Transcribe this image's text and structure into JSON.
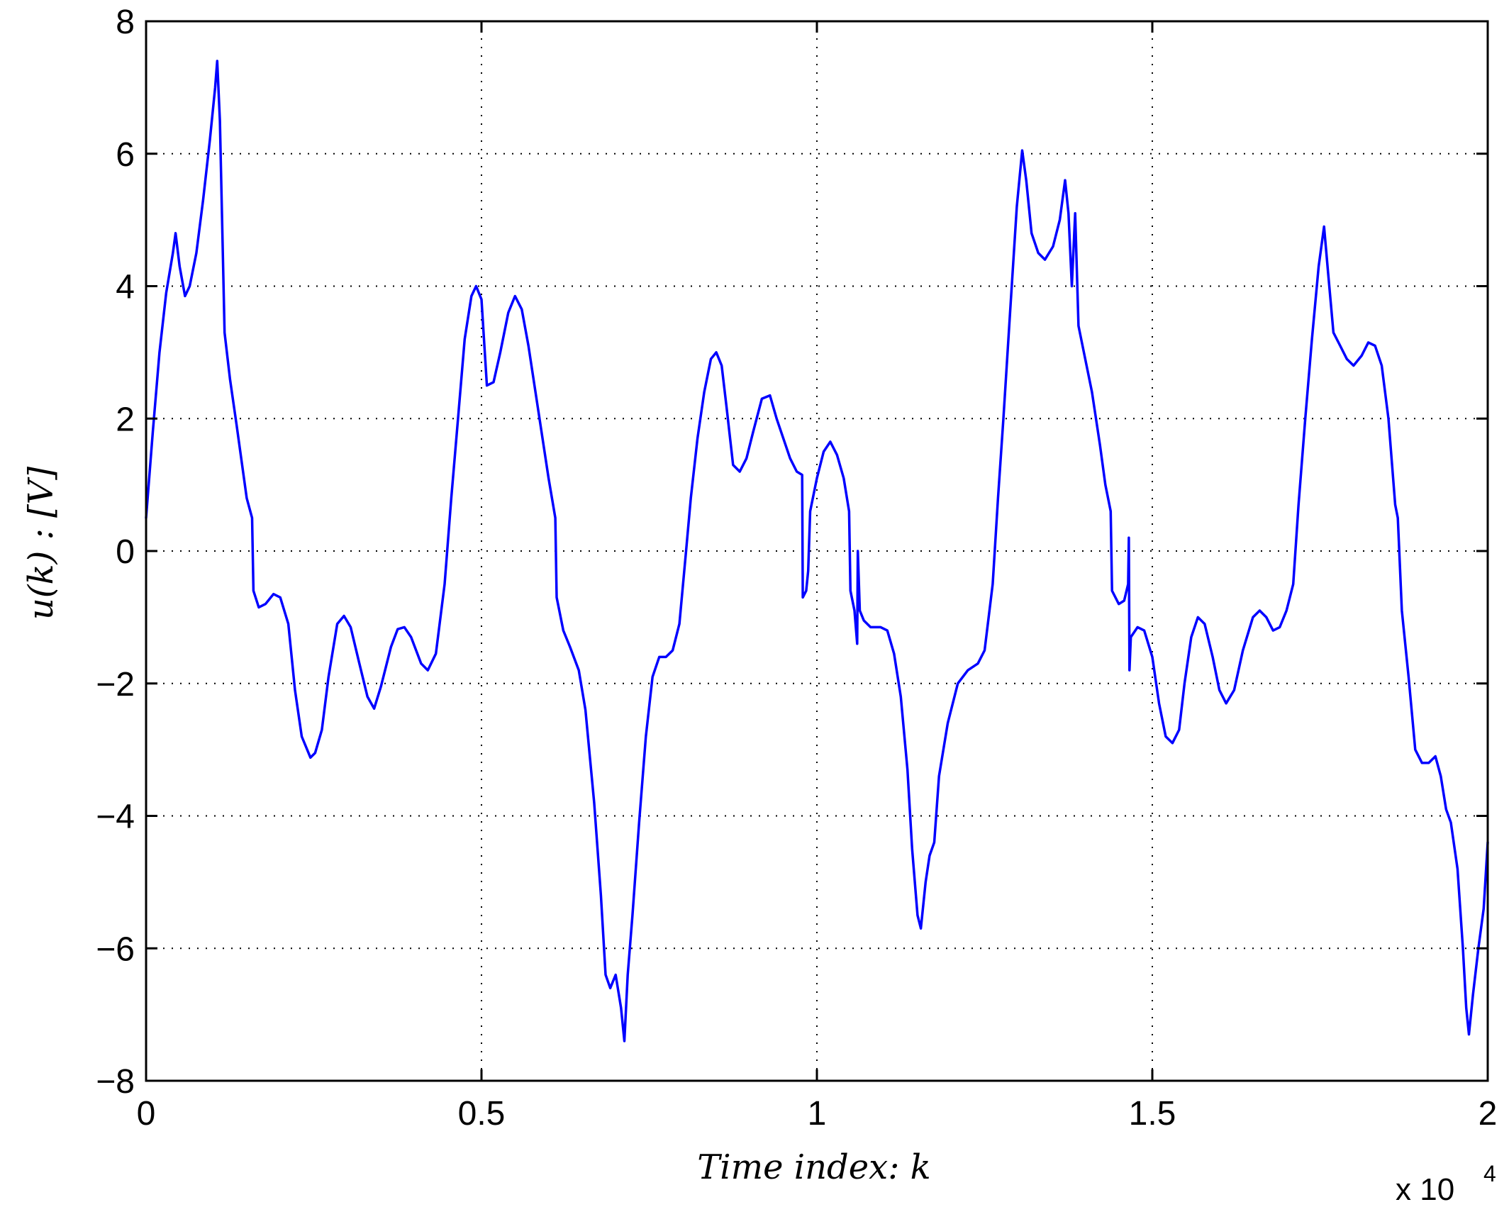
{
  "chart_data": {
    "type": "line",
    "title": "",
    "xlabel": "Time index:  k",
    "ylabel": "u(k) : [V]",
    "x_exponent_label": "x 10",
    "x_exponent_power": "4",
    "xlim": [
      0,
      2
    ],
    "ylim": [
      -8,
      8
    ],
    "xticks": [
      0,
      0.5,
      1,
      1.5,
      2
    ],
    "xtick_labels": [
      "0",
      "0.5",
      "1",
      "1.5",
      "2"
    ],
    "yticks": [
      -8,
      -6,
      -4,
      -2,
      0,
      2,
      4,
      6,
      8
    ],
    "ytick_labels": [
      "−8",
      "−6",
      "−4",
      "−2",
      "0",
      "2",
      "4",
      "6",
      "8"
    ],
    "grid": true,
    "colors": {
      "series": "#0000ff",
      "axes": "#000000",
      "background": "#ffffff"
    },
    "series": [
      {
        "points": [
          [
            0.0,
            0.5
          ],
          [
            0.01,
            1.8
          ],
          [
            0.02,
            3.0
          ],
          [
            0.03,
            3.9
          ],
          [
            0.04,
            4.5
          ],
          [
            0.044,
            4.8
          ],
          [
            0.05,
            4.3
          ],
          [
            0.058,
            3.85
          ],
          [
            0.065,
            4.0
          ],
          [
            0.075,
            4.5
          ],
          [
            0.085,
            5.3
          ],
          [
            0.095,
            6.2
          ],
          [
            0.103,
            7.0
          ],
          [
            0.106,
            7.4
          ],
          [
            0.11,
            6.5
          ],
          [
            0.117,
            3.3
          ],
          [
            0.125,
            2.6
          ],
          [
            0.135,
            1.9
          ],
          [
            0.15,
            0.8
          ],
          [
            0.158,
            0.5
          ],
          [
            0.16,
            -0.6
          ],
          [
            0.168,
            -0.85
          ],
          [
            0.178,
            -0.8
          ],
          [
            0.19,
            -0.65
          ],
          [
            0.2,
            -0.7
          ],
          [
            0.212,
            -1.1
          ],
          [
            0.222,
            -2.1
          ],
          [
            0.232,
            -2.8
          ],
          [
            0.245,
            -3.12
          ],
          [
            0.252,
            -3.05
          ],
          [
            0.262,
            -2.7
          ],
          [
            0.272,
            -1.9
          ],
          [
            0.285,
            -1.1
          ],
          [
            0.295,
            -0.98
          ],
          [
            0.305,
            -1.15
          ],
          [
            0.318,
            -1.7
          ],
          [
            0.33,
            -2.2
          ],
          [
            0.34,
            -2.38
          ],
          [
            0.35,
            -2.05
          ],
          [
            0.365,
            -1.45
          ],
          [
            0.375,
            -1.18
          ],
          [
            0.385,
            -1.15
          ],
          [
            0.395,
            -1.3
          ],
          [
            0.41,
            -1.7
          ],
          [
            0.42,
            -1.8
          ],
          [
            0.432,
            -1.55
          ],
          [
            0.445,
            -0.5
          ],
          [
            0.455,
            0.8
          ],
          [
            0.465,
            2.0
          ],
          [
            0.475,
            3.2
          ],
          [
            0.485,
            3.85
          ],
          [
            0.492,
            4.0
          ],
          [
            0.5,
            3.8
          ],
          [
            0.508,
            2.5
          ],
          [
            0.518,
            2.55
          ],
          [
            0.528,
            3.0
          ],
          [
            0.54,
            3.6
          ],
          [
            0.55,
            3.85
          ],
          [
            0.56,
            3.65
          ],
          [
            0.57,
            3.1
          ],
          [
            0.585,
            2.1
          ],
          [
            0.6,
            1.1
          ],
          [
            0.61,
            0.5
          ],
          [
            0.612,
            -0.7
          ],
          [
            0.622,
            -1.2
          ],
          [
            0.632,
            -1.45
          ],
          [
            0.645,
            -1.8
          ],
          [
            0.655,
            -2.4
          ],
          [
            0.668,
            -3.8
          ],
          [
            0.678,
            -5.2
          ],
          [
            0.685,
            -6.4
          ],
          [
            0.692,
            -6.6
          ],
          [
            0.7,
            -6.4
          ],
          [
            0.708,
            -6.9
          ],
          [
            0.713,
            -7.4
          ],
          [
            0.718,
            -6.4
          ],
          [
            0.725,
            -5.5
          ],
          [
            0.735,
            -4.1
          ],
          [
            0.745,
            -2.8
          ],
          [
            0.755,
            -1.9
          ],
          [
            0.765,
            -1.6
          ],
          [
            0.775,
            -1.6
          ],
          [
            0.785,
            -1.5
          ],
          [
            0.795,
            -1.1
          ],
          [
            0.805,
            0.0
          ],
          [
            0.812,
            0.8
          ],
          [
            0.822,
            1.7
          ],
          [
            0.832,
            2.4
          ],
          [
            0.842,
            2.9
          ],
          [
            0.85,
            3.0
          ],
          [
            0.858,
            2.8
          ],
          [
            0.865,
            2.2
          ],
          [
            0.875,
            1.3
          ],
          [
            0.885,
            1.2
          ],
          [
            0.895,
            1.4
          ],
          [
            0.905,
            1.8
          ],
          [
            0.918,
            2.3
          ],
          [
            0.93,
            2.35
          ],
          [
            0.94,
            2.0
          ],
          [
            0.95,
            1.7
          ],
          [
            0.96,
            1.4
          ],
          [
            0.97,
            1.2
          ],
          [
            0.978,
            1.15
          ],
          [
            0.979,
            -0.7
          ],
          [
            0.984,
            -0.6
          ],
          [
            0.987,
            -0.3
          ],
          [
            0.99,
            0.6
          ],
          [
            1.0,
            1.1
          ],
          [
            1.01,
            1.5
          ],
          [
            1.02,
            1.65
          ],
          [
            1.03,
            1.45
          ],
          [
            1.04,
            1.1
          ],
          [
            1.048,
            0.6
          ],
          [
            1.05,
            -0.6
          ],
          [
            1.056,
            -0.9
          ],
          [
            1.06,
            -1.4
          ],
          [
            1.061,
            0.0
          ],
          [
            1.064,
            -0.9
          ],
          [
            1.07,
            -1.05
          ],
          [
            1.08,
            -1.15
          ],
          [
            1.095,
            -1.15
          ],
          [
            1.105,
            -1.2
          ],
          [
            1.115,
            -1.55
          ],
          [
            1.125,
            -2.2
          ],
          [
            1.135,
            -3.3
          ],
          [
            1.142,
            -4.5
          ],
          [
            1.15,
            -5.5
          ],
          [
            1.155,
            -5.7
          ],
          [
            1.162,
            -5.0
          ],
          [
            1.168,
            -4.6
          ],
          [
            1.175,
            -4.4
          ],
          [
            1.182,
            -3.4
          ],
          [
            1.195,
            -2.6
          ],
          [
            1.21,
            -2.0
          ],
          [
            1.225,
            -1.8
          ],
          [
            1.24,
            -1.7
          ],
          [
            1.25,
            -1.5
          ],
          [
            1.262,
            -0.5
          ],
          [
            1.27,
            0.8
          ],
          [
            1.278,
            2.0
          ],
          [
            1.288,
            3.6
          ],
          [
            1.298,
            5.2
          ],
          [
            1.306,
            6.05
          ],
          [
            1.312,
            5.6
          ],
          [
            1.32,
            4.8
          ],
          [
            1.33,
            4.5
          ],
          [
            1.34,
            4.4
          ],
          [
            1.352,
            4.6
          ],
          [
            1.362,
            5.0
          ],
          [
            1.37,
            5.6
          ],
          [
            1.375,
            5.1
          ],
          [
            1.38,
            4.0
          ],
          [
            1.385,
            5.1
          ],
          [
            1.39,
            3.4
          ],
          [
            1.4,
            2.9
          ],
          [
            1.41,
            2.4
          ],
          [
            1.422,
            1.6
          ],
          [
            1.43,
            1.0
          ],
          [
            1.438,
            0.6
          ],
          [
            1.44,
            -0.6
          ],
          [
            1.45,
            -0.8
          ],
          [
            1.458,
            -0.75
          ],
          [
            1.464,
            -0.5
          ],
          [
            1.465,
            0.2
          ],
          [
            1.466,
            -1.8
          ],
          [
            1.468,
            -1.3
          ],
          [
            1.478,
            -1.15
          ],
          [
            1.488,
            -1.2
          ],
          [
            1.5,
            -1.6
          ],
          [
            1.51,
            -2.3
          ],
          [
            1.52,
            -2.8
          ],
          [
            1.53,
            -2.9
          ],
          [
            1.54,
            -2.7
          ],
          [
            1.548,
            -2.0
          ],
          [
            1.558,
            -1.3
          ],
          [
            1.568,
            -1.0
          ],
          [
            1.578,
            -1.1
          ],
          [
            1.59,
            -1.6
          ],
          [
            1.6,
            -2.1
          ],
          [
            1.61,
            -2.3
          ],
          [
            1.622,
            -2.1
          ],
          [
            1.635,
            -1.5
          ],
          [
            1.65,
            -1.0
          ],
          [
            1.66,
            -0.9
          ],
          [
            1.67,
            -1.0
          ],
          [
            1.68,
            -1.2
          ],
          [
            1.69,
            -1.15
          ],
          [
            1.7,
            -0.9
          ],
          [
            1.71,
            -0.5
          ],
          [
            1.718,
            0.7
          ],
          [
            1.728,
            2.0
          ],
          [
            1.738,
            3.2
          ],
          [
            1.748,
            4.3
          ],
          [
            1.756,
            4.9
          ],
          [
            1.762,
            4.2
          ],
          [
            1.77,
            3.3
          ],
          [
            1.78,
            3.1
          ],
          [
            1.79,
            2.9
          ],
          [
            1.8,
            2.8
          ],
          [
            1.812,
            2.95
          ],
          [
            1.822,
            3.15
          ],
          [
            1.832,
            3.1
          ],
          [
            1.842,
            2.8
          ],
          [
            1.852,
            2.0
          ],
          [
            1.862,
            0.7
          ],
          [
            1.866,
            0.5
          ],
          [
            1.872,
            -0.9
          ],
          [
            1.882,
            -1.9
          ],
          [
            1.892,
            -3.0
          ],
          [
            1.902,
            -3.2
          ],
          [
            1.912,
            -3.2
          ],
          [
            1.922,
            -3.1
          ],
          [
            1.93,
            -3.4
          ],
          [
            1.938,
            -3.9
          ],
          [
            1.945,
            -4.1
          ],
          [
            1.955,
            -4.8
          ],
          [
            1.963,
            -6.0
          ],
          [
            1.968,
            -6.9
          ],
          [
            1.972,
            -7.3
          ],
          [
            1.978,
            -6.7
          ],
          [
            1.986,
            -6.0
          ],
          [
            1.994,
            -5.4
          ],
          [
            2.0,
            -4.4
          ]
        ]
      }
    ]
  }
}
